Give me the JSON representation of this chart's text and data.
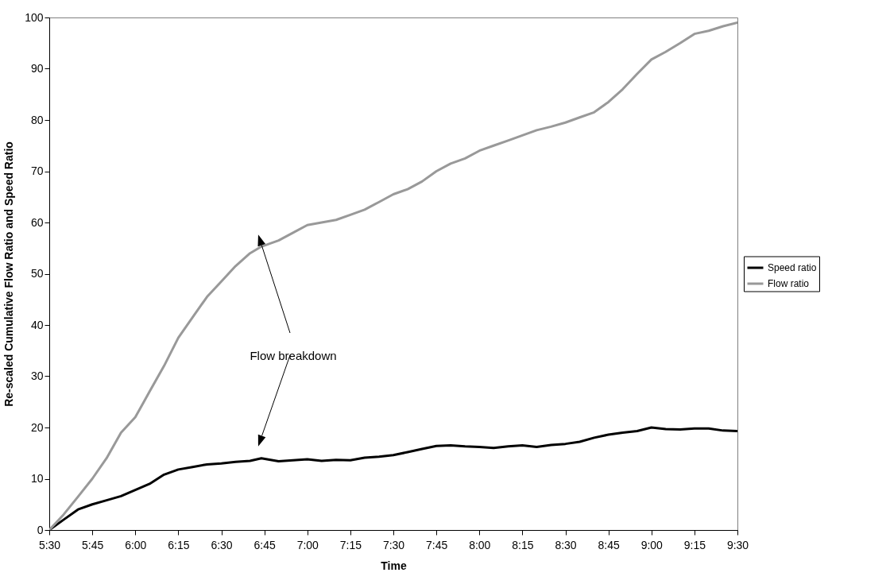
{
  "chart_data": {
    "type": "line",
    "xlabel": "Time",
    "ylabel": "Re-scaled Cumulative Flow Ratio and Speed Ratio",
    "x": [
      5.5,
      5.583,
      5.667,
      5.75,
      5.833,
      5.917,
      6.0,
      6.083,
      6.167,
      6.25,
      6.333,
      6.417,
      6.5,
      6.583,
      6.667,
      6.733,
      6.833,
      6.917,
      7.0,
      7.083,
      7.167,
      7.25,
      7.333,
      7.417,
      7.5,
      7.583,
      7.667,
      7.75,
      7.833,
      7.917,
      8.0,
      8.083,
      8.167,
      8.25,
      8.333,
      8.417,
      8.5,
      8.583,
      8.667,
      8.75,
      8.833,
      8.917,
      9.0,
      9.083,
      9.167,
      9.25,
      9.333,
      9.417,
      9.5
    ],
    "series": [
      {
        "name": "Speed ratio",
        "color": "#000000",
        "values": [
          0,
          2,
          4,
          5,
          5.8,
          6.6,
          7.8,
          9,
          10.8,
          11.8,
          12.3,
          12.8,
          13,
          13.3,
          13.5,
          14,
          13.4,
          13.6,
          13.8,
          13.5,
          13.7,
          13.6,
          14.1,
          14.3,
          14.6,
          15.2,
          15.8,
          16.4,
          16.5,
          16.3,
          16.2,
          16,
          16.3,
          16.5,
          16.2,
          16.6,
          16.8,
          17.2,
          18,
          18.6,
          19,
          19.3,
          20,
          19.7,
          19.6,
          19.8,
          19.8,
          19.4,
          19.3
        ]
      },
      {
        "name": "Flow ratio",
        "color": "#999999",
        "values": [
          0,
          3,
          6.5,
          10,
          14,
          19,
          22,
          27,
          32,
          37.5,
          41.5,
          45.5,
          48.5,
          51.5,
          54,
          55.3,
          56.5,
          58,
          59.5,
          60,
          60.5,
          61.5,
          62.5,
          64,
          65.5,
          66.5,
          68,
          70,
          71.5,
          72.5,
          74,
          75,
          76,
          77,
          78,
          78.7,
          79.5,
          80.5,
          81.5,
          83.5,
          86,
          89,
          91.8,
          93.3,
          95,
          96.8,
          97.4,
          98.3,
          99
        ]
      }
    ],
    "xlim": [
      5.5,
      9.5
    ],
    "xticks": [
      {
        "value": 5.5,
        "label": "5:30"
      },
      {
        "value": 5.75,
        "label": "5:45"
      },
      {
        "value": 6,
        "label": "6:00"
      },
      {
        "value": 6.25,
        "label": "6:15"
      },
      {
        "value": 6.5,
        "label": "6:30"
      },
      {
        "value": 6.75,
        "label": "6:45"
      },
      {
        "value": 7,
        "label": "7:00"
      },
      {
        "value": 7.25,
        "label": "7:15"
      },
      {
        "value": 7.5,
        "label": "7:30"
      },
      {
        "value": 7.75,
        "label": "7:45"
      },
      {
        "value": 8,
        "label": "8:00"
      },
      {
        "value": 8.25,
        "label": "8:15"
      },
      {
        "value": 8.5,
        "label": "8:30"
      },
      {
        "value": 8.75,
        "label": "8:45"
      },
      {
        "value": 9,
        "label": "9:00"
      },
      {
        "value": 9.25,
        "label": "9:15"
      },
      {
        "value": 9.5,
        "label": "9:30"
      }
    ],
    "ylim": [
      0,
      100
    ],
    "yticks": [
      0,
      10,
      20,
      30,
      40,
      50,
      60,
      70,
      80,
      90,
      100
    ],
    "grid": false,
    "legend": "right",
    "marker": "none",
    "line_style": "solid",
    "annotations": [
      "Flow breakdown"
    ]
  }
}
